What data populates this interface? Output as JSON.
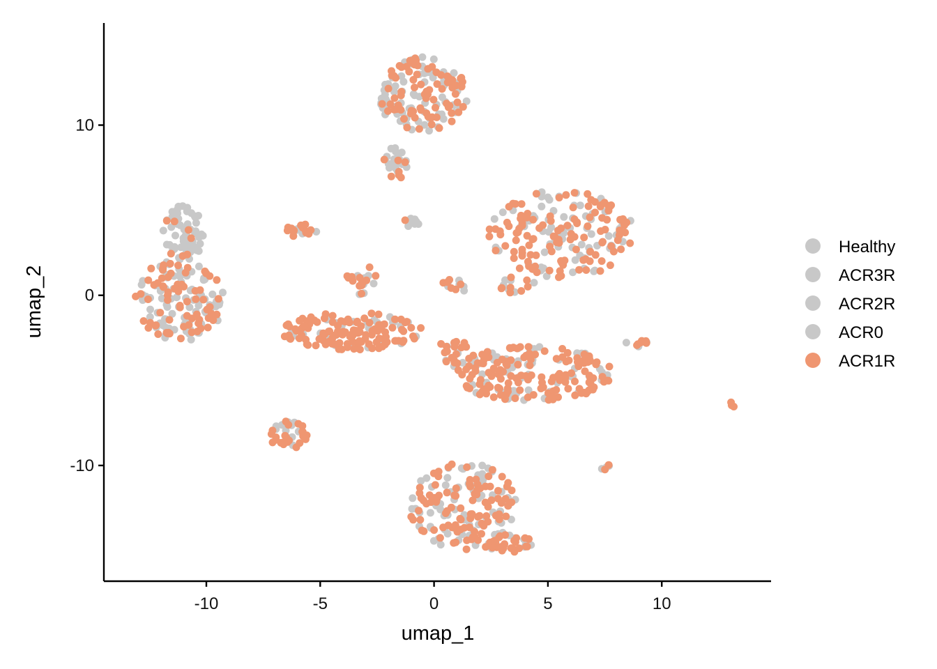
{
  "chart_data": {
    "type": "scatter",
    "xlabel": "umap_1",
    "ylabel": "umap_2",
    "xlim": [
      -14.5,
      14.8
    ],
    "ylim": [
      -16.8,
      16
    ],
    "x_ticks": [
      -10,
      -5,
      0,
      5,
      10
    ],
    "x_tick_labels": [
      "-10",
      "-5",
      "0",
      "5",
      "10"
    ],
    "y_ticks": [
      -10,
      0,
      10
    ],
    "y_tick_labels": [
      "-10",
      "0",
      "10"
    ],
    "grid": false,
    "legend_position": "right",
    "highlight_group": "ACR1R",
    "legend": [
      {
        "name": "Healthy",
        "color": "#C8C8C8"
      },
      {
        "name": "ACR3R",
        "color": "#C8C8C8"
      },
      {
        "name": "ACR2R",
        "color": "#C8C8C8"
      },
      {
        "name": "ACR0",
        "color": "#C8C8C8"
      },
      {
        "name": "ACR1R",
        "color": "#EF9671"
      }
    ],
    "clusters": [
      {
        "cx": -11.2,
        "cy": -0.3,
        "rx": 2.0,
        "ry": 2.4,
        "n": 160,
        "hi": 0.45
      },
      {
        "cx": -11.0,
        "cy": 3.6,
        "rx": 0.9,
        "ry": 1.7,
        "n": 70,
        "hi": 0.15
      },
      {
        "cx": -0.5,
        "cy": 11.8,
        "rx": 2.0,
        "ry": 2.2,
        "n": 150,
        "hi": 0.5
      },
      {
        "cx": -1.7,
        "cy": 7.8,
        "rx": 0.6,
        "ry": 1.0,
        "n": 25,
        "hi": 0.4
      },
      {
        "cx": 5.6,
        "cy": 3.6,
        "rx": 3.2,
        "ry": 2.6,
        "n": 190,
        "hi": 0.62
      },
      {
        "cx": -3.6,
        "cy": -2.1,
        "rx": 3.1,
        "ry": 1.1,
        "n": 150,
        "hi": 0.8
      },
      {
        "cx": -3.2,
        "cy": 0.9,
        "rx": 0.7,
        "ry": 0.9,
        "n": 20,
        "hi": 0.6
      },
      {
        "cx": 4.3,
        "cy": -4.6,
        "rx": 3.6,
        "ry": 1.6,
        "n": 200,
        "hi": 0.7
      },
      {
        "cx": 1.3,
        "cy": -12.4,
        "rx": 2.4,
        "ry": 2.6,
        "n": 170,
        "hi": 0.6
      },
      {
        "cx": 3.1,
        "cy": -14.6,
        "rx": 1.3,
        "ry": 0.5,
        "n": 40,
        "hi": 0.7
      },
      {
        "cx": -6.4,
        "cy": -8.2,
        "rx": 0.9,
        "ry": 0.8,
        "n": 35,
        "hi": 0.75
      },
      {
        "cx": -5.8,
        "cy": 3.8,
        "rx": 0.7,
        "ry": 0.4,
        "n": 20,
        "hi": 0.8
      },
      {
        "cx": -0.9,
        "cy": 4.3,
        "rx": 0.4,
        "ry": 0.4,
        "n": 10,
        "hi": 0.2
      },
      {
        "cx": 0.9,
        "cy": 0.6,
        "rx": 0.8,
        "ry": 0.4,
        "n": 12,
        "hi": 0.6
      },
      {
        "cx": 3.6,
        "cy": 0.6,
        "rx": 0.9,
        "ry": 0.5,
        "n": 14,
        "hi": 0.6
      },
      {
        "cx": 0.8,
        "cy": -3.3,
        "rx": 0.7,
        "ry": 0.8,
        "n": 18,
        "hi": 0.7
      },
      {
        "cx": 9.1,
        "cy": -2.8,
        "rx": 0.7,
        "ry": 0.3,
        "n": 10,
        "hi": 0.5
      },
      {
        "cx": 7.6,
        "cy": -10.1,
        "rx": 0.3,
        "ry": 0.15,
        "n": 5,
        "hi": 0.5
      },
      {
        "cx": 13.1,
        "cy": -6.4,
        "rx": 0.2,
        "ry": 0.15,
        "n": 3,
        "hi": 0.6
      }
    ]
  }
}
